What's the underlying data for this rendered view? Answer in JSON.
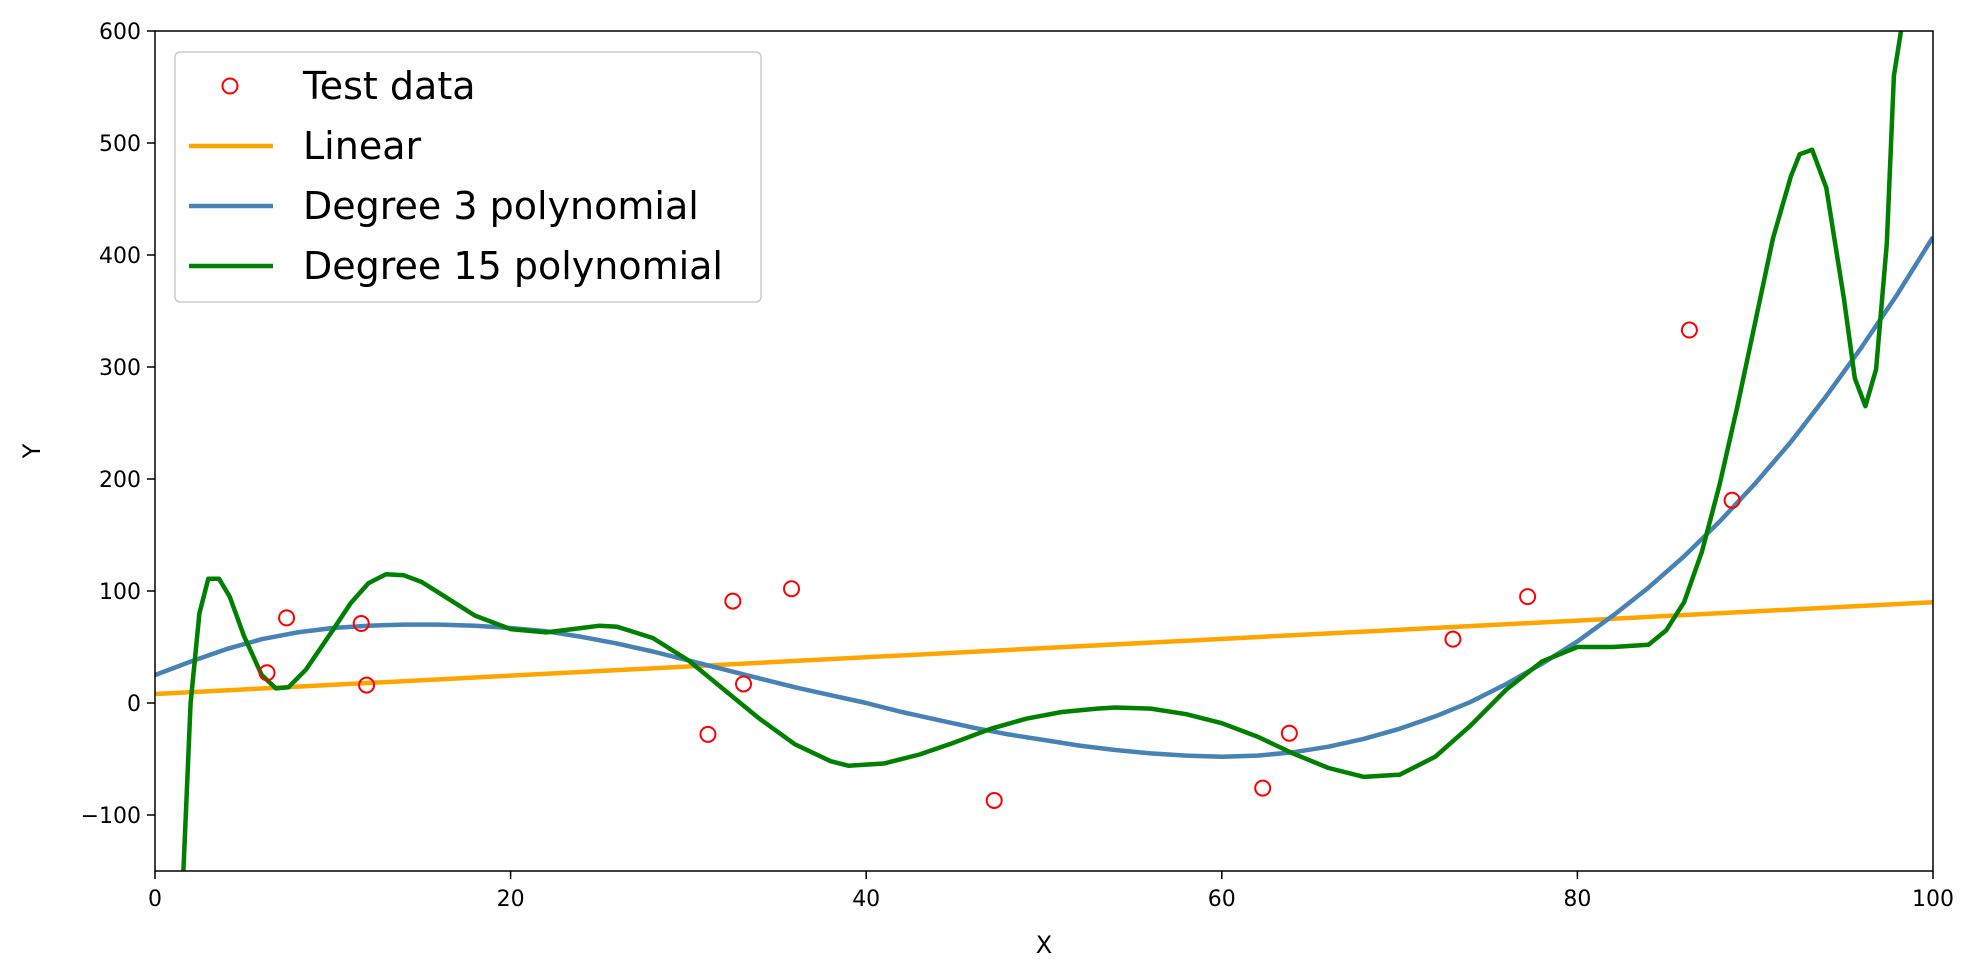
{
  "chart_data": {
    "type": "line",
    "title": "",
    "xlabel": "X",
    "ylabel": "Y",
    "xlim": [
      0,
      100
    ],
    "ylim": [
      -150,
      600
    ],
    "xticks": [
      0,
      20,
      40,
      60,
      80,
      100
    ],
    "xtick_labels": [
      "0",
      "20",
      "40",
      "60",
      "80",
      "100"
    ],
    "yticks": [
      -100,
      0,
      100,
      200,
      300,
      400,
      500,
      600
    ],
    "ytick_labels": [
      "−100",
      "0",
      "100",
      "200",
      "300",
      "400",
      "500",
      "600"
    ],
    "grid": false,
    "legend_position": "top-left",
    "series": [
      {
        "name": "Test data",
        "kind": "scatter",
        "color": "#ff0000",
        "marker": "open-circle",
        "points": [
          [
            6.3,
            27
          ],
          [
            7.4,
            76
          ],
          [
            11.6,
            71
          ],
          [
            11.9,
            16
          ],
          [
            31.1,
            -28
          ],
          [
            32.5,
            91
          ],
          [
            33.1,
            17
          ],
          [
            35.8,
            102
          ],
          [
            47.2,
            -87
          ],
          [
            62.3,
            -76
          ],
          [
            63.8,
            -27
          ],
          [
            73.0,
            57
          ],
          [
            77.2,
            95
          ],
          [
            86.3,
            333
          ],
          [
            88.7,
            181
          ]
        ]
      },
      {
        "name": "Linear",
        "kind": "line",
        "color": "#ffa500",
        "points": [
          [
            0,
            8
          ],
          [
            100,
            90
          ]
        ]
      },
      {
        "name": "Degree 3 polynomial",
        "kind": "line",
        "color": "#4682b4",
        "points": [
          [
            0,
            25
          ],
          [
            2,
            37
          ],
          [
            4,
            48
          ],
          [
            6,
            57
          ],
          [
            8,
            63
          ],
          [
            10,
            67
          ],
          [
            12,
            69
          ],
          [
            14,
            70
          ],
          [
            16,
            70
          ],
          [
            18,
            69
          ],
          [
            20,
            67
          ],
          [
            22,
            64
          ],
          [
            24,
            59
          ],
          [
            26,
            53
          ],
          [
            28,
            46
          ],
          [
            30,
            38
          ],
          [
            32,
            30
          ],
          [
            34,
            22
          ],
          [
            36,
            14
          ],
          [
            38,
            7
          ],
          [
            40,
            0
          ],
          [
            42,
            -8
          ],
          [
            44,
            -15
          ],
          [
            46,
            -22
          ],
          [
            48,
            -28
          ],
          [
            50,
            -33
          ],
          [
            52,
            -38
          ],
          [
            54,
            -42
          ],
          [
            56,
            -45
          ],
          [
            58,
            -47
          ],
          [
            60,
            -48
          ],
          [
            62,
            -47
          ],
          [
            64,
            -44
          ],
          [
            66,
            -39
          ],
          [
            68,
            -32
          ],
          [
            70,
            -23
          ],
          [
            72,
            -12
          ],
          [
            74,
            1
          ],
          [
            76,
            17
          ],
          [
            78,
            35
          ],
          [
            80,
            55
          ],
          [
            82,
            78
          ],
          [
            84,
            103
          ],
          [
            86,
            131
          ],
          [
            88,
            162
          ],
          [
            90,
            196
          ],
          [
            92,
            233
          ],
          [
            94,
            274
          ],
          [
            96,
            318
          ],
          [
            98,
            365
          ],
          [
            100,
            416
          ]
        ]
      },
      {
        "name": "Degree 15 polynomial",
        "kind": "line",
        "color": "#008000",
        "points": [
          [
            1.6,
            -150
          ],
          [
            2.0,
            0
          ],
          [
            2.5,
            80
          ],
          [
            3.0,
            111
          ],
          [
            3.6,
            111
          ],
          [
            4.2,
            95
          ],
          [
            5.0,
            60
          ],
          [
            6.0,
            25
          ],
          [
            6.8,
            13
          ],
          [
            7.5,
            14
          ],
          [
            8.5,
            30
          ],
          [
            10,
            65
          ],
          [
            11,
            89
          ],
          [
            12,
            107
          ],
          [
            13,
            115
          ],
          [
            14,
            114
          ],
          [
            15,
            108
          ],
          [
            16,
            98
          ],
          [
            18,
            78
          ],
          [
            20,
            66
          ],
          [
            22,
            63
          ],
          [
            24,
            67
          ],
          [
            25,
            69
          ],
          [
            26,
            68
          ],
          [
            28,
            58
          ],
          [
            30,
            38
          ],
          [
            32,
            12
          ],
          [
            34,
            -14
          ],
          [
            36,
            -37
          ],
          [
            38,
            -52
          ],
          [
            39,
            -56
          ],
          [
            41,
            -54
          ],
          [
            43,
            -46
          ],
          [
            45,
            -35
          ],
          [
            47,
            -23
          ],
          [
            49,
            -14
          ],
          [
            51,
            -8
          ],
          [
            53,
            -5
          ],
          [
            54,
            -4
          ],
          [
            56,
            -5
          ],
          [
            58,
            -10
          ],
          [
            60,
            -18
          ],
          [
            62,
            -30
          ],
          [
            64,
            -45
          ],
          [
            66,
            -58
          ],
          [
            68,
            -66
          ],
          [
            70,
            -64
          ],
          [
            72,
            -48
          ],
          [
            74,
            -20
          ],
          [
            76,
            12
          ],
          [
            78,
            37
          ],
          [
            80,
            50
          ],
          [
            82,
            50
          ],
          [
            84,
            52
          ],
          [
            85,
            65
          ],
          [
            86,
            90
          ],
          [
            87,
            135
          ],
          [
            88,
            195
          ],
          [
            89,
            265
          ],
          [
            90,
            340
          ],
          [
            91,
            415
          ],
          [
            92,
            470
          ],
          [
            92.5,
            490
          ],
          [
            93.2,
            494
          ],
          [
            94,
            460
          ],
          [
            95,
            360
          ],
          [
            95.6,
            290
          ],
          [
            96.2,
            265
          ],
          [
            96.8,
            298
          ],
          [
            97.4,
            410
          ],
          [
            97.8,
            560
          ],
          [
            98.2,
            600
          ]
        ]
      }
    ]
  }
}
